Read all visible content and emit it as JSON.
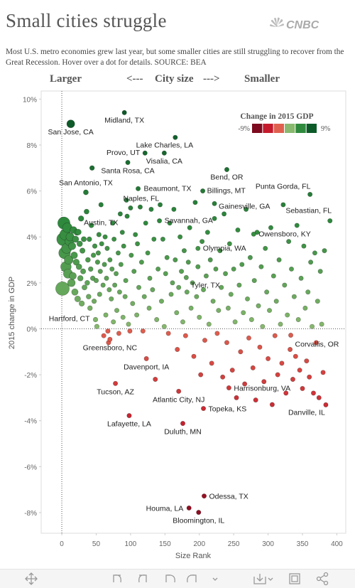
{
  "header": {
    "title": "Small cities struggle",
    "logo": "CNBC",
    "subtitle": "Most U.S. metro economies grew last year, but some smaller cities are still struggling to recover from the Great Recession. Hover over a dot for details. SOURCE: BEA",
    "size_left": "Larger",
    "arrow_left": "<---",
    "size_label": "City size",
    "arrow_right": "--->",
    "size_right": "Smaller"
  },
  "chart_data": {
    "type": "scatter",
    "x_label": "Size Rank",
    "y_label": "2015 change in GDP",
    "xlim": [
      -30,
      413
    ],
    "ylim": [
      -8.9,
      10.35
    ],
    "xticks": [
      0,
      50,
      100,
      150,
      200,
      250,
      300,
      350,
      400
    ],
    "yticks": [
      {
        "value": 10,
        "label": "10%"
      },
      {
        "value": 8,
        "label": "8%"
      },
      {
        "value": 6,
        "label": "6%"
      },
      {
        "value": 4,
        "label": "4%"
      },
      {
        "value": 2,
        "label": "2%"
      },
      {
        "value": 0,
        "label": "0%"
      },
      {
        "value": -2,
        "label": "-2%"
      },
      {
        "value": -4,
        "label": "-4%"
      },
      {
        "value": -6,
        "label": "-6%"
      },
      {
        "value": -8,
        "label": "-8%"
      }
    ],
    "legend": {
      "title": "Change in 2015 GDP",
      "min": {
        "value": -9,
        "label": "-9%"
      },
      "max": {
        "value": 9,
        "label": "9%"
      },
      "colors": [
        "#7d0a1e",
        "#c41a2b",
        "#e0604f",
        "#88b96e",
        "#2f8a3d",
        "#0c5a28"
      ]
    },
    "series": [
      {
        "x": [
          91,
          13,
          165,
          121,
          149,
          96,
          240,
          35,
          111,
          361,
          205,
          100,
          222,
          390,
          142,
          24,
          279,
          198,
          181,
          49,
          70,
          333,
          123,
          243,
          78,
          170,
          384,
          206,
          98,
          176,
          207,
          185,
          199
        ],
        "values": [
          9.41,
          8.92,
          8.33,
          7.65,
          7.65,
          7.24,
          6.93,
          5.94,
          6.1,
          5.85,
          6.0,
          5.26,
          5.45,
          4.7,
          4.7,
          4.21,
          4.12,
          3.5,
          2.23,
          0.4,
          -0.46,
          -0.28,
          -1.3,
          -2.57,
          -2.38,
          -2.72,
          -3.31,
          -3.47,
          -3.78,
          -4.12,
          -7.28,
          -7.8,
          -7.99
        ],
        "labels": [
          "Midland, TX",
          "San Jose, CA",
          "Lake Charles, LA",
          "Provo, UT",
          "Visalia, CA",
          "Santa Rosa, CA",
          "Bend, OR",
          "San Antonio, TX",
          "Beaumont, TX",
          "Punta Gorda, FL",
          "Billings, MT",
          "Naples, FL",
          "Gainesville, GA",
          "Sebastian, FL",
          "Savannah, GA",
          "Austin, TX",
          "Owensboro, KY",
          "Olympia, WA",
          "Tyler, TX",
          "Hartford, CT",
          "Greensboro, NC",
          "Corvallis, OR",
          "Davenport, IA",
          "Harrisonburg, VA",
          "Tucson, AZ",
          "Atlantic City, NJ",
          "Danville, IL",
          "Topeka, KS",
          "Lafayette, LA",
          "Duluth, MN",
          "Odessa, TX",
          "Houma, LA",
          "Bloomington, IL"
        ]
      },
      {
        "x": [
          1,
          2,
          3,
          4,
          5,
          6,
          7,
          8,
          9,
          10,
          11,
          12,
          14,
          15,
          16,
          17,
          18,
          19,
          20,
          21,
          22,
          23,
          25,
          26,
          27,
          28,
          29,
          30,
          31,
          32,
          33,
          36,
          37,
          38,
          39,
          40,
          41,
          42,
          43,
          44,
          45,
          46,
          47,
          48,
          50,
          51,
          52,
          53,
          54,
          55,
          56,
          57,
          58,
          60,
          61,
          62,
          63,
          64,
          65,
          66,
          67,
          68,
          69,
          70,
          72,
          73,
          74,
          75,
          76,
          77,
          79,
          80,
          82,
          83,
          84,
          85,
          86,
          88,
          89,
          90,
          92,
          93,
          94,
          95,
          97,
          99,
          101,
          103,
          105,
          107,
          109,
          110,
          112,
          114,
          116,
          118,
          120,
          122,
          125,
          127,
          128,
          130,
          132,
          134,
          136,
          138,
          140,
          143,
          145,
          147,
          149,
          151,
          153,
          155,
          157,
          159,
          161,
          163,
          165,
          167,
          168,
          170,
          172,
          174,
          176,
          178,
          180,
          182,
          184,
          186,
          188,
          190,
          192,
          194,
          196,
          198,
          200,
          202,
          204,
          206,
          208,
          210,
          212,
          214,
          216,
          218,
          220,
          222,
          224,
          226,
          228,
          230,
          232,
          234,
          236,
          238,
          240,
          242,
          244,
          246,
          248,
          250,
          252,
          254,
          256,
          258,
          260,
          262,
          264,
          266,
          268,
          270,
          272,
          274,
          276,
          278,
          280,
          282,
          284,
          286,
          288,
          290,
          292,
          294,
          296,
          298,
          300,
          302,
          304,
          306,
          308,
          310,
          312,
          314,
          316,
          318,
          320,
          322,
          324,
          326,
          328,
          330,
          332,
          334,
          336,
          338,
          340,
          342,
          344,
          346,
          348,
          350,
          352,
          354,
          356,
          358,
          360,
          362,
          364,
          366,
          368,
          370,
          372,
          374,
          376,
          378,
          380,
          382
        ],
        "values": [
          1.75,
          3.9,
          4.6,
          3.3,
          4.1,
          2.7,
          3.5,
          4.4,
          2.4,
          3.0,
          3.8,
          4.0,
          2.0,
          3.6,
          2.3,
          4.3,
          3.2,
          1.6,
          3.9,
          2.9,
          4.2,
          1.3,
          2.7,
          3.7,
          2.2,
          4.8,
          1.1,
          3.4,
          2.5,
          3.9,
          1.8,
          5.1,
          2.0,
          3.0,
          1.4,
          3.9,
          0.9,
          2.6,
          4.5,
          7.0,
          2.2,
          3.2,
          1.2,
          3.6,
          2.1,
          0.1,
          2.9,
          3.3,
          4.1,
          1.5,
          2.5,
          5.4,
          3.7,
          1.9,
          -0.3,
          2.8,
          4.0,
          0.6,
          2.2,
          3.5,
          -0.1,
          -0.6,
          1.7,
          3.0,
          1.3,
          2.6,
          4.6,
          0.3,
          3.9,
          1.9,
          2.4,
          0.8,
          3.3,
          -0.2,
          1.6,
          5.0,
          2.8,
          4.2,
          0.5,
          3.6,
          1.4,
          2.1,
          5.6,
          4.9,
          0.2,
          -0.1,
          3.2,
          1.1,
          2.5,
          4.1,
          0.6,
          3.7,
          1.8,
          5.3,
          2.9,
          -0.1,
          1.4,
          4.6,
          3.3,
          0.9,
          2.2,
          5.2,
          1.7,
          3.9,
          -2.2,
          0.4,
          2.6,
          5.4,
          1.2,
          3.9,
          0.1,
          2.4,
          3.1,
          -0.2,
          4.6,
          1.5,
          2.0,
          5.2,
          3.0,
          0.7,
          -0.9,
          1.8,
          4.0,
          2.5,
          0.3,
          3.4,
          -0.3,
          1.6,
          2.9,
          4.4,
          0.9,
          2.0,
          -1.2,
          5.5,
          1.4,
          2.7,
          0.5,
          -2.0,
          3.8,
          1.7,
          -0.5,
          2.3,
          4.2,
          0.2,
          3.0,
          -1.5,
          1.2,
          4.8,
          2.6,
          -0.2,
          0.8,
          3.4,
          1.8,
          -2.1,
          5.0,
          2.4,
          -0.6,
          0.9,
          3.7,
          1.5,
          -1.8,
          2.6,
          0.3,
          -3.0,
          4.3,
          1.9,
          -1.0,
          2.8,
          0.7,
          -2.4,
          5.2,
          1.3,
          -0.4,
          3.1,
          0.4,
          -1.7,
          2.1,
          -3.1,
          4.2,
          1.0,
          -0.8,
          2.7,
          0.1,
          -2.3,
          3.5,
          1.6,
          -1.3,
          0.8,
          4.4,
          -3.3,
          2.3,
          -0.3,
          1.2,
          -2.0,
          3.0,
          0.2,
          -1.5,
          5.4,
          1.9,
          -2.8,
          0.6,
          3.8,
          -0.9,
          2.6,
          -2.2,
          1.4,
          -1.2,
          4.5,
          0.4,
          -1.8,
          2.2,
          -2.6,
          3.6,
          0.9,
          -1.4,
          1.6,
          -2.1,
          2.9,
          0.1,
          -2.8,
          3.3,
          -0.6,
          1.2,
          -3.0,
          2.5,
          0.2,
          -1.9,
          3.4
        ]
      }
    ]
  }
}
